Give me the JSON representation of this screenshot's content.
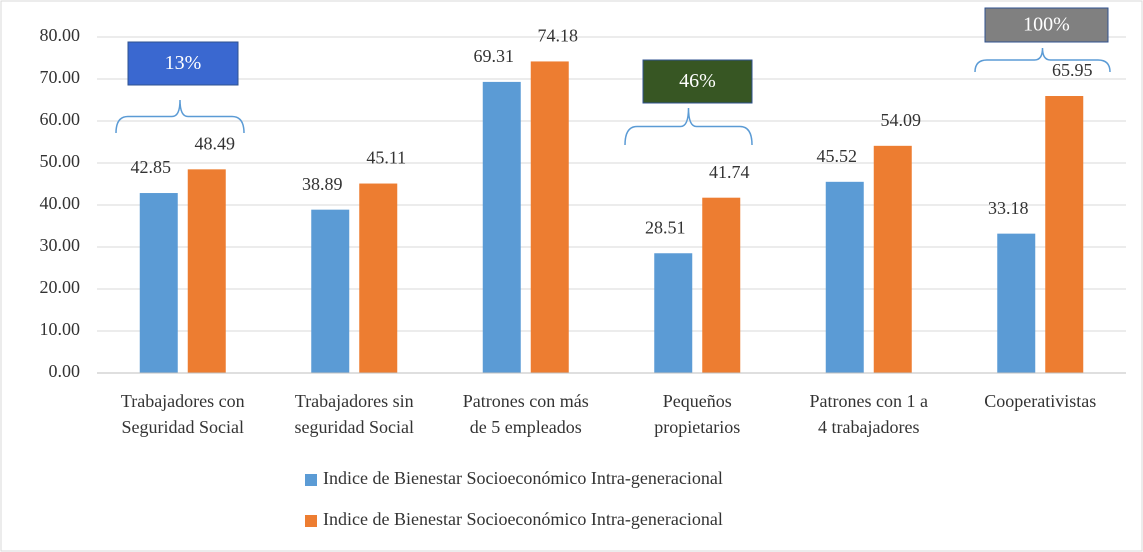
{
  "chart_data": {
    "type": "bar",
    "categories": [
      "Trabajadores con\nSeguridad Social",
      "Trabajadores sin\nseguridad Social",
      "Patrones con más\nde 5 empleados",
      "Pequeños\npropietarios",
      "Patrones con 1 a\n4 trabajadores",
      "Cooperativistas"
    ],
    "series": [
      {
        "name": "Indice de Bienestar Socioeconómico Intra-generacional",
        "color": "#5b9bd5",
        "values": [
          42.85,
          38.89,
          69.31,
          28.51,
          45.52,
          33.18
        ]
      },
      {
        "name": "Indice de Bienestar Socioeconómico Intra-generacional",
        "color": "#ed7d31",
        "values": [
          48.49,
          45.11,
          74.18,
          41.74,
          54.09,
          65.95
        ]
      }
    ],
    "ylim": [
      0,
      80
    ],
    "yticks": [
      {
        "value": 0,
        "label": "0.00"
      },
      {
        "value": 10,
        "label": "10.00"
      },
      {
        "value": 20,
        "label": "20.00"
      },
      {
        "value": 30,
        "label": "30.00"
      },
      {
        "value": 40,
        "label": "40.00"
      },
      {
        "value": 50,
        "label": "50.00"
      },
      {
        "value": 60,
        "label": "60.00"
      },
      {
        "value": 70,
        "label": "70.00"
      },
      {
        "value": 80,
        "label": "80.00"
      }
    ],
    "grid": true,
    "legend": "bottom",
    "annotations": [
      {
        "text": "13%",
        "color": "#3a68d0"
      },
      {
        "text": "46%",
        "color": "#375623"
      },
      {
        "text": "100%",
        "color": "#808080"
      }
    ]
  }
}
